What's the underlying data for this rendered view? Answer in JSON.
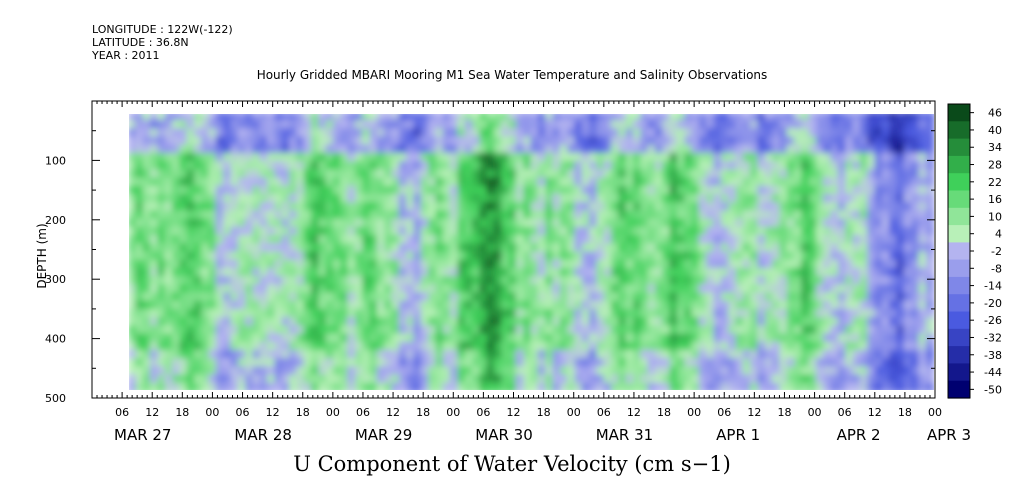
{
  "header": {
    "longitude": "LONGITUDE : 122W(-122)",
    "latitude": "LATITUDE : 36.8N",
    "year": "YEAR : 2011"
  },
  "chart_data": {
    "type": "heatmap",
    "title": "Hourly Gridded MBARI Mooring M1 Sea Water Temperature and Salinity Observations",
    "bottom_title": "U Component of Water Velocity (cm s−1)",
    "ylabel": "DEPTH (m)",
    "ylim": [
      500,
      0
    ],
    "data_depth_range": [
      20,
      490
    ],
    "y_ticks": [
      100,
      200,
      300,
      400,
      500
    ],
    "x_start": "2011-03-27T00:00",
    "x_end": "2011-04-03T00:00",
    "hour_labels": [
      "06",
      "12",
      "18",
      "00",
      "06",
      "12",
      "18",
      "00",
      "06",
      "12",
      "18",
      "00",
      "06",
      "12",
      "18",
      "00",
      "06",
      "12",
      "18",
      "00",
      "06",
      "12",
      "18",
      "00",
      "06",
      "12",
      "18",
      "00"
    ],
    "day_labels": [
      "MAR 27",
      "MAR 28",
      "MAR 29",
      "MAR 30",
      "MAR 31",
      "APR  1",
      "APR  2",
      "APR  3"
    ],
    "colorbar_labels": [
      "46",
      "40",
      "34",
      "28",
      "22",
      "16",
      "10",
      "4",
      "-2",
      "-8",
      "-14",
      "-20",
      "-26",
      "-32",
      "-38",
      "-44",
      "-50"
    ],
    "colors": {
      "positive_strong": "#0a4a1a",
      "positive_mid": "#3fd05a",
      "positive_light": "#b8f0b8",
      "negative_light": "#b4b4f0",
      "negative_mid": "#4a5ae0",
      "negative_strong": "#000070"
    }
  }
}
